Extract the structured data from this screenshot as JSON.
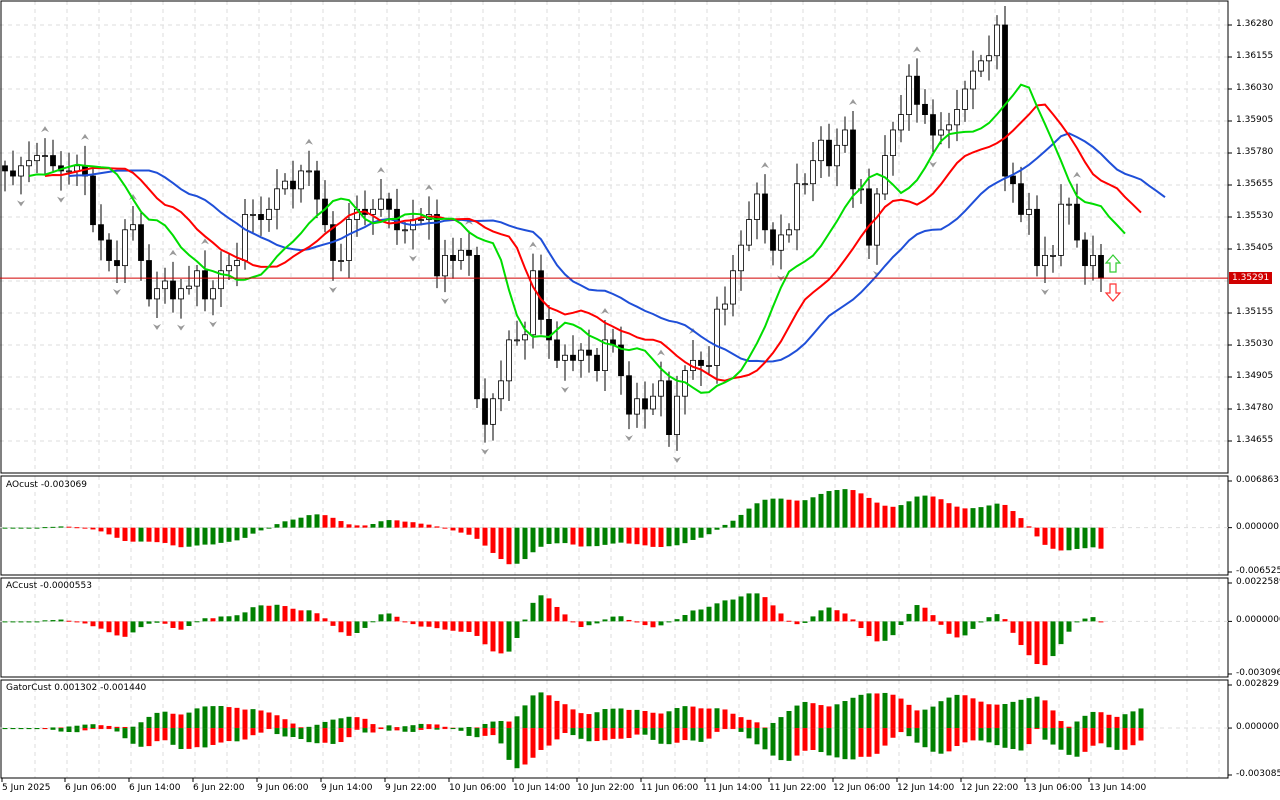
{
  "chart_data": {
    "type": "candlestick",
    "timeframe_labels": [
      "5 Jun 2025",
      "6 Jun 06:00",
      "6 Jun 14:00",
      "6 Jun 22:00",
      "9 Jun 06:00",
      "9 Jun 14:00",
      "9 Jun 22:00",
      "10 Jun 06:00",
      "10 Jun 14:00",
      "10 Jun 22:00",
      "11 Jun 06:00",
      "11 Jun 14:00",
      "11 Jun 22:00",
      "12 Jun 06:00",
      "12 Jun 14:00",
      "12 Jun 22:00",
      "13 Jun 06:00",
      "13 Jun 14:00"
    ],
    "price_ticks": [
      "1.36280",
      "1.36155",
      "1.36030",
      "1.35905",
      "1.35780",
      "1.35655",
      "1.35530",
      "1.35405",
      "1.35155",
      "1.35030",
      "1.34905",
      "1.34780",
      "1.34655"
    ],
    "ylim": [
      1.3453,
      1.3637
    ],
    "current_price": "1.35291",
    "closes": [
      1.3571,
      1.3569,
      1.3573,
      1.3575,
      1.3577,
      1.3577,
      1.3573,
      1.3571,
      1.3571,
      1.3573,
      1.3569,
      1.355,
      1.3544,
      1.3536,
      1.3534,
      1.3548,
      1.355,
      1.3536,
      1.3521,
      1.3525,
      1.3528,
      1.3521,
      1.3525,
      1.3526,
      1.3532,
      1.3521,
      1.3525,
      1.3532,
      1.3534,
      1.3536,
      1.3554,
      1.3554,
      1.3552,
      1.3556,
      1.3564,
      1.3567,
      1.3564,
      1.3571,
      1.3571,
      1.356,
      1.355,
      1.3536,
      1.3536,
      1.3552,
      1.3556,
      1.3554,
      1.3556,
      1.356,
      1.3556,
      1.3548,
      1.3548,
      1.3552,
      1.3552,
      1.3554,
      1.353,
      1.3538,
      1.3536,
      1.354,
      1.3538,
      1.3482,
      1.3472,
      1.3482,
      1.3489,
      1.3505,
      1.3505,
      1.3507,
      1.3532,
      1.3513,
      1.3505,
      1.3497,
      1.3499,
      1.3497,
      1.3501,
      1.3499,
      1.3493,
      1.3505,
      1.3503,
      1.3491,
      1.3476,
      1.3482,
      1.3478,
      1.3483,
      1.3489,
      1.3468,
      1.3483,
      1.3493,
      1.3497,
      1.3495,
      1.3495,
      1.3517,
      1.3519,
      1.3532,
      1.3542,
      1.3552,
      1.3562,
      1.3548,
      1.354,
      1.3546,
      1.3548,
      1.3566,
      1.3566,
      1.3575,
      1.3583,
      1.3573,
      1.3581,
      1.3587,
      1.3564,
      1.3564,
      1.3542,
      1.3562,
      1.3577,
      1.3587,
      1.3593,
      1.3608,
      1.3597,
      1.3593,
      1.3585,
      1.3587,
      1.3589,
      1.3595,
      1.3603,
      1.361,
      1.3614,
      1.3616,
      1.3628,
      1.3569,
      1.3566,
      1.3554,
      1.3556,
      1.3534,
      1.3538,
      1.3538,
      1.3558,
      1.3558,
      1.3544,
      1.3534,
      1.3538,
      1.35291
    ],
    "series_colors": {
      "jaw": "#1f4fd8",
      "teeth": "#ff0000",
      "lips": "#00dd00",
      "up": "#008000",
      "down": "#ff0000"
    },
    "indicators": [
      {
        "name": "AOcust",
        "title": "AOcust -0.003069",
        "ticks": [
          "0.006863",
          "0.000000",
          "-0.006525"
        ],
        "range": [
          -0.006525,
          0.006863
        ]
      },
      {
        "name": "ACcust",
        "title": "ACcust -0.0000553",
        "ticks": [
          "0.0022589",
          "0.0000000",
          "-0.0030965"
        ],
        "range": [
          -0.0030965,
          0.0022589
        ]
      },
      {
        "name": "GatorCust",
        "title": "GatorCust 0.001302 -0.001440",
        "ticks": [
          "0.002829",
          "0.000000",
          "-0.003085"
        ],
        "range": [
          -0.003085,
          0.002829
        ]
      }
    ]
  }
}
